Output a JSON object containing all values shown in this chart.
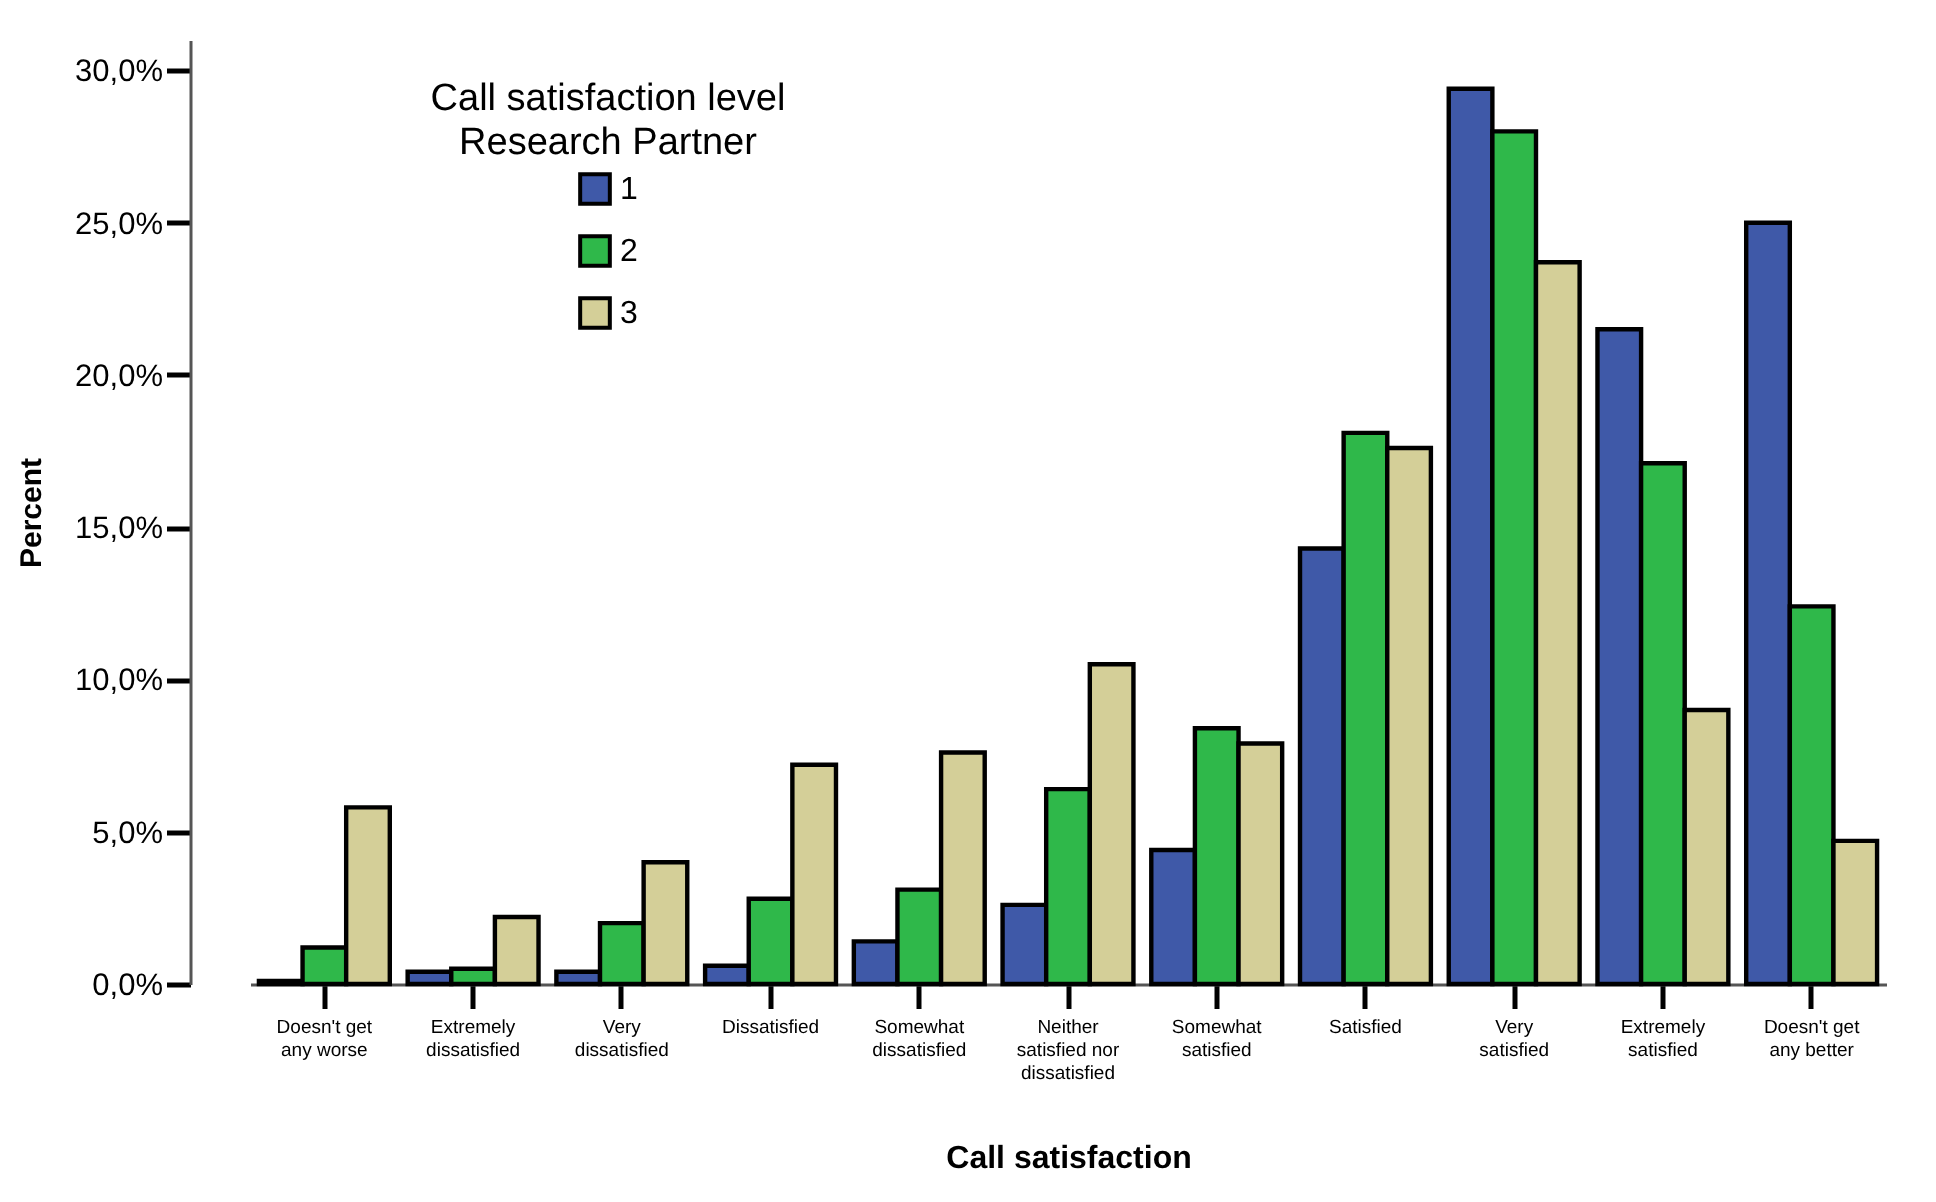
{
  "chart_data": {
    "type": "bar",
    "xlabel": "Call satisfaction",
    "ylabel": "Percent",
    "legend_title": "Call satisfaction level\nResearch Partner",
    "legend": "top left",
    "grid": false,
    "categories": [
      "Doesn't get any worse",
      "Extremely dissatisfied",
      "Very dissatisfied",
      "Dissatisfied",
      "Somewhat dissatisfied",
      "Neither satisfied nor dissatisfied",
      "Somewhat satisfied",
      "Satisfied",
      "Very satisfied",
      "Extremely satisfied",
      "Doesn't get any better"
    ],
    "series": [
      {
        "name": "1",
        "color": "#3f59a8",
        "values": [
          0.1,
          0.4,
          0.4,
          0.6,
          1.4,
          2.6,
          4.4,
          14.3,
          29.4,
          21.5,
          25.0
        ]
      },
      {
        "name": "2",
        "color": "#2fb84a",
        "values": [
          1.2,
          0.5,
          2.0,
          2.8,
          3.1,
          6.4,
          8.4,
          18.1,
          28.0,
          17.1,
          12.4
        ]
      },
      {
        "name": "3",
        "color": "#d4cf98",
        "values": [
          5.8,
          2.2,
          4.0,
          7.2,
          7.6,
          10.5,
          7.9,
          17.6,
          23.7,
          9.0,
          4.7
        ]
      }
    ],
    "ylim": [
      0,
      31
    ],
    "yticks": [
      {
        "value": 0,
        "label": "0,0%"
      },
      {
        "value": 5,
        "label": "5,0%"
      },
      {
        "value": 10,
        "label": "10,0%"
      },
      {
        "value": 15,
        "label": "15,0%"
      },
      {
        "value": 20,
        "label": "20,0%"
      },
      {
        "value": 25,
        "label": "25,0%"
      },
      {
        "value": 30,
        "label": "30,0%"
      }
    ]
  }
}
